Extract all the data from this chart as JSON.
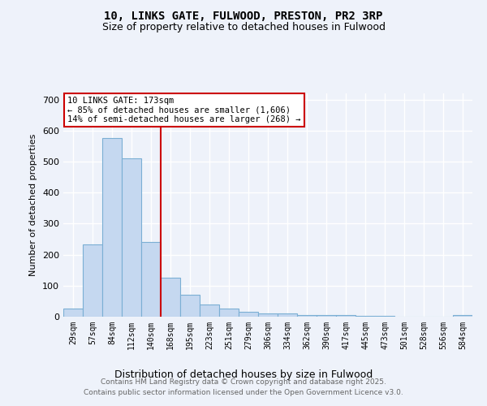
{
  "title1": "10, LINKS GATE, FULWOOD, PRESTON, PR2 3RP",
  "title2": "Size of property relative to detached houses in Fulwood",
  "xlabel": "Distribution of detached houses by size in Fulwood",
  "ylabel": "Number of detached properties",
  "categories": [
    "29sqm",
    "57sqm",
    "84sqm",
    "112sqm",
    "140sqm",
    "168sqm",
    "195sqm",
    "223sqm",
    "251sqm",
    "279sqm",
    "306sqm",
    "334sqm",
    "362sqm",
    "390sqm",
    "417sqm",
    "445sqm",
    "473sqm",
    "501sqm",
    "528sqm",
    "556sqm",
    "584sqm"
  ],
  "values": [
    25,
    233,
    575,
    510,
    240,
    125,
    70,
    40,
    25,
    15,
    10,
    10,
    5,
    4,
    4,
    3,
    2,
    0,
    0,
    0,
    4
  ],
  "bar_color": "#c5d8f0",
  "bar_edge_color": "#7bafd4",
  "vline_x_index": 5,
  "vline_color": "#cc0000",
  "annotation_text": "10 LINKS GATE: 173sqm\n← 85% of detached houses are smaller (1,606)\n14% of semi-detached houses are larger (268) →",
  "annotation_box_color": "white",
  "annotation_box_edge": "#cc0000",
  "ylim": [
    0,
    720
  ],
  "yticks": [
    0,
    100,
    200,
    300,
    400,
    500,
    600,
    700
  ],
  "footer1": "Contains HM Land Registry data © Crown copyright and database right 2025.",
  "footer2": "Contains public sector information licensed under the Open Government Licence v3.0.",
  "bg_color": "#eef2fa",
  "grid_color": "#ffffff"
}
